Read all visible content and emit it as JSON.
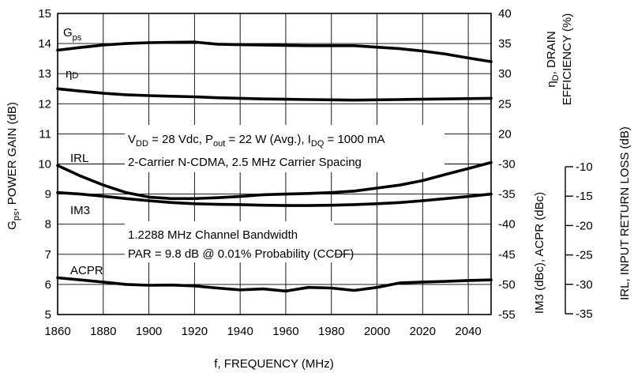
{
  "chart_data": {
    "type": "line",
    "title": "",
    "xlabel": "f, FREQUENCY (MHz)",
    "x": [
      1860,
      1870,
      1880,
      1890,
      1900,
      1910,
      1920,
      1930,
      1940,
      1950,
      1960,
      1970,
      1980,
      1990,
      2000,
      2010,
      2020,
      2030,
      2040,
      2050
    ],
    "xlim": [
      1860,
      2050
    ],
    "xticks": [
      "1860",
      "1880",
      "1900",
      "1920",
      "1940",
      "1960",
      "1980",
      "2000",
      "2020",
      "2040"
    ],
    "grid": true,
    "left_axis": {
      "label_main": "G",
      "label_sub": "ps",
      "label_rest": ", POWER GAIN (dB)",
      "ylim": [
        5,
        15
      ],
      "ticks": [
        "5",
        "6",
        "7",
        "8",
        "9",
        "10",
        "11",
        "12",
        "13",
        "14",
        "15"
      ]
    },
    "right_axis_1": {
      "label_line1_main": "η",
      "label_line1_sub": "D",
      "label_line1_rest": ", DRAIN",
      "label_line2": "EFFICIENCY (%)",
      "ticks": [
        "25",
        "30",
        "35",
        "40"
      ],
      "tick_range": [
        25,
        40
      ]
    },
    "right_axis_2": {
      "label": "IM3 (dBc), ACPR (dBc)",
      "ticks": [
        "-55",
        "-50",
        "-45",
        "-40",
        "-35",
        "-30"
      ],
      "tick_range": [
        -55,
        -30
      ]
    },
    "right_axis_3": {
      "label": "IRL,  INPUT RETURN LOSS (dB)",
      "ticks": [
        "-35",
        "-30",
        "-25",
        "-20",
        "-15",
        "-10"
      ],
      "tick_range": [
        -35,
        -10
      ]
    },
    "series": [
      {
        "name": "Gps",
        "label_main": "G",
        "label_sub": "ps",
        "values": [
          13.78,
          13.87,
          13.95,
          14.0,
          14.03,
          14.04,
          14.05,
          13.98,
          13.96,
          13.95,
          13.94,
          13.93,
          13.93,
          13.93,
          13.88,
          13.83,
          13.75,
          13.65,
          13.52,
          13.4
        ]
      },
      {
        "name": "ηD",
        "label_main": "η",
        "label_sub": "D",
        "values": [
          12.5,
          12.42,
          12.35,
          12.3,
          12.27,
          12.25,
          12.23,
          12.2,
          12.18,
          12.16,
          12.15,
          12.14,
          12.13,
          12.12,
          12.13,
          12.14,
          12.15,
          12.16,
          12.17,
          12.18
        ]
      },
      {
        "name": "IRL",
        "label_main": "IRL",
        "label_sub": "",
        "values": [
          9.95,
          9.6,
          9.3,
          9.05,
          8.9,
          8.85,
          8.85,
          8.88,
          8.92,
          8.98,
          9.0,
          9.02,
          9.05,
          9.1,
          9.2,
          9.3,
          9.45,
          9.65,
          9.85,
          10.05
        ]
      },
      {
        "name": "IM3",
        "label_main": "IM3",
        "label_sub": "",
        "values": [
          9.05,
          9.0,
          8.93,
          8.85,
          8.78,
          8.72,
          8.68,
          8.66,
          8.65,
          8.63,
          8.62,
          8.62,
          8.63,
          8.65,
          8.68,
          8.72,
          8.78,
          8.85,
          8.92,
          9.0
        ]
      },
      {
        "name": "ACPR",
        "label_main": "ACPR",
        "label_sub": "",
        "values": [
          6.22,
          6.15,
          6.08,
          6.0,
          5.97,
          5.98,
          5.95,
          5.88,
          5.82,
          5.85,
          5.78,
          5.9,
          5.88,
          5.8,
          5.9,
          6.05,
          6.08,
          6.1,
          6.13,
          6.15
        ]
      }
    ],
    "annotations": {
      "cond_line1": {
        "vdd_main": "V",
        "vdd_sub": "DD",
        "vdd_rest": " = 28 Vdc, P",
        "pout_sub": "out",
        "pout_rest": " = 22 W (Avg.), I",
        "idq_sub": "DQ",
        "idq_rest": " = 1000 mA"
      },
      "cond_line2": "2-Carrier N-CDMA, 2.5 MHz Carrier Spacing",
      "cond_line3": "1.2288 MHz Channel Bandwidth",
      "cond_line4": "PAR = 9.8 dB @ 0.01% Probability (CCDF)"
    },
    "colors": {
      "line": "#000000",
      "grid": "#000000",
      "background": "#ffffff"
    }
  }
}
